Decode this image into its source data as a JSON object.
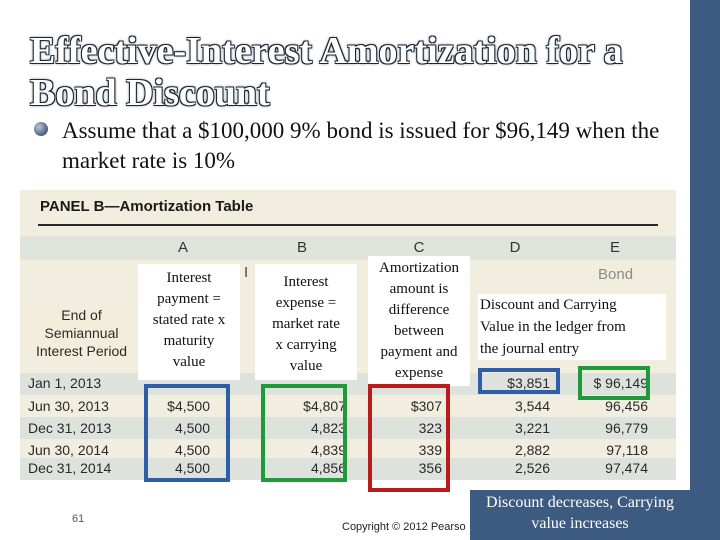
{
  "slide": {
    "title_line1": "Effective-Interest Amortization for a",
    "title_line2": "Bond Discount",
    "bullet": "Assume that a $100,000 9% bond is issued for $96,149 when the market rate is 10%",
    "page_number": "61",
    "copyright": "Copyright © 2012 Pearso",
    "caption": "Discount decreases, Carrying value increases"
  },
  "panel": {
    "title": "PANEL B—Amortization Table",
    "column_letters": [
      "A",
      "B",
      "C",
      "D",
      "E"
    ],
    "period_header": "End of Semiannual Interest Period",
    "header_fragments": {
      "b_left": "I",
      "e_top": "Bond"
    }
  },
  "table": {
    "rows": [
      {
        "period": "Jan 1, 2013",
        "a": "",
        "b": "",
        "c": "",
        "d": "$3,851",
        "e": "$ 96,149"
      },
      {
        "period": "Jun 30, 2013",
        "a": "$4,500",
        "b": "$4,807",
        "c": "$307",
        "d": "3,544",
        "e": "96,456"
      },
      {
        "period": "Dec 31, 2013",
        "a": "4,500",
        "b": "4,823",
        "c": "323",
        "d": "3,221",
        "e": "96,779"
      },
      {
        "period": "Jun 30, 2014",
        "a": "4,500",
        "b": "4,839",
        "c": "339",
        "d": "2,882",
        "e": "97,118"
      },
      {
        "period": "Dec 31, 2014",
        "a": "4,500",
        "b": "4,856",
        "c": "356",
        "d": "2,526",
        "e": "97,474"
      }
    ]
  },
  "callouts": {
    "col_a": [
      "Interest",
      "payment =",
      "stated rate x",
      "maturity",
      "value"
    ],
    "col_b": [
      "Interest",
      "expense =",
      "market rate",
      "x carrying",
      "value"
    ],
    "col_c": [
      "Amortization",
      "amount is",
      "difference",
      "between",
      "payment and",
      "expense"
    ],
    "note": [
      "Discount and Carrying",
      "Value in the ledger from",
      "the journal entry"
    ]
  },
  "colors": {
    "accent_bar": "#3d5a80",
    "box_blue": "#2f5ea8",
    "box_green": "#1f9a3a",
    "box_red": "#b81c1c"
  }
}
